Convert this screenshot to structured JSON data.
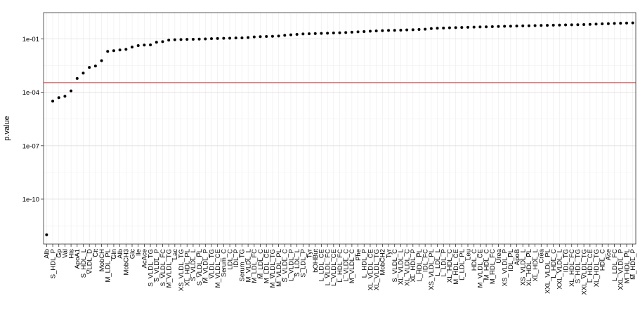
{
  "chart_data": {
    "type": "scatter",
    "ylabel": "p.value",
    "xlabel": "",
    "yscale": "log10",
    "ylim": [
      3e-13,
      3.0
    ],
    "yticks": [
      {
        "value": 0.1,
        "label": "1e-01"
      },
      {
        "value": 0.0001,
        "label": "1e-04"
      },
      {
        "value": 1e-07,
        "label": "1e-07"
      },
      {
        "value": 1e-10,
        "label": "1e-10"
      }
    ],
    "reference_line": {
      "value": 0.00035,
      "color": "#cc3333"
    },
    "grid": true,
    "point_color": "#000000",
    "points": [
      {
        "x": "Alb",
        "y": 1e-12
      },
      {
        "x": "S_HDL_P",
        "y": 3.2e-05
      },
      {
        "x": "Gp",
        "y": 5e-05
      },
      {
        "x": "Val",
        "y": 6e-05
      },
      {
        "x": "His",
        "y": 0.00012
      },
      {
        "x": "ApoA1",
        "y": 0.0006
      },
      {
        "x": "S_HDL_L",
        "y": 0.0012
      },
      {
        "x": "VLDL_D",
        "y": 0.0025
      },
      {
        "x": "Cit",
        "y": 0.003
      },
      {
        "x": "MobCH",
        "y": 0.006
      },
      {
        "x": "M_LDL_PL",
        "y": 0.02
      },
      {
        "x": "Gln",
        "y": 0.022
      },
      {
        "x": "Alb",
        "y": 0.024
      },
      {
        "x": "MobCH3",
        "y": 0.026
      },
      {
        "x": "Glc",
        "y": 0.035
      },
      {
        "x": "Ile",
        "y": 0.042
      },
      {
        "x": "AcAce",
        "y": 0.045
      },
      {
        "x": "S_VLDL_TG",
        "y": 0.046
      },
      {
        "x": "S_VLDL_P",
        "y": 0.065
      },
      {
        "x": "S_VLDL_FC",
        "y": 0.07
      },
      {
        "x": "M_VLDL_TG",
        "y": 0.085
      },
      {
        "x": "Lac",
        "y": 0.09
      },
      {
        "x": "XS_VLDL_TG",
        "y": 0.092
      },
      {
        "x": "XL_HDL_PL",
        "y": 0.094
      },
      {
        "x": "S_VLDL_L",
        "y": 0.096
      },
      {
        "x": "S_VLDL_PL",
        "y": 0.098
      },
      {
        "x": "M_VLDL_P",
        "y": 0.1
      },
      {
        "x": "VLDL_TG",
        "y": 0.103
      },
      {
        "x": "M_VLDL_CE",
        "y": 0.106
      },
      {
        "x": "Serum_C",
        "y": 0.108
      },
      {
        "x": "LDL_C",
        "y": 0.11
      },
      {
        "x": "IDL_P",
        "y": 0.113
      },
      {
        "x": "Serum_TG",
        "y": 0.115
      },
      {
        "x": "M_VLDL_L",
        "y": 0.12
      },
      {
        "x": "M_LDL_FC",
        "y": 0.13
      },
      {
        "x": "M_LDL_C",
        "y": 0.135
      },
      {
        "x": "M_LDL_CE",
        "y": 0.138
      },
      {
        "x": "M_VLDL_TG",
        "y": 0.14
      },
      {
        "x": "M_VLDL_PL",
        "y": 0.145
      },
      {
        "x": "S_VLDL_C",
        "y": 0.16
      },
      {
        "x": "L_VLDL_P",
        "y": 0.17
      },
      {
        "x": "S_LDL_L",
        "y": 0.18
      },
      {
        "x": "S_LDL_P",
        "y": 0.19
      },
      {
        "x": "Tyr",
        "y": 0.195
      },
      {
        "x": "bOHBut",
        "y": 0.2
      },
      {
        "x": "L_LDL_CE",
        "y": 0.205
      },
      {
        "x": "L_VLDL_FC",
        "y": 0.21
      },
      {
        "x": "L_VLDL_CE",
        "y": 0.215
      },
      {
        "x": "L_HDL_FC",
        "y": 0.22
      },
      {
        "x": "L_VLDL_C",
        "y": 0.23
      },
      {
        "x": "M_VLDL_C",
        "y": 0.24
      },
      {
        "x": "Phe",
        "y": 0.25
      },
      {
        "x": "L_HDL_P",
        "y": 0.26
      },
      {
        "x": "XL_VLDL_CE",
        "y": 0.27
      },
      {
        "x": "XL_VLDL_TG",
        "y": 0.28
      },
      {
        "x": "MobCH2",
        "y": 0.29
      },
      {
        "x": "Tyr",
        "y": 0.3
      },
      {
        "x": "S_VLDL_C",
        "y": 0.305
      },
      {
        "x": "XL_VLDL_L",
        "y": 0.31
      },
      {
        "x": "XL_VLDL_C",
        "y": 0.32
      },
      {
        "x": "XL_HDL_P",
        "y": 0.33
      },
      {
        "x": "L_HDL_PL",
        "y": 0.34
      },
      {
        "x": "IDL_FC",
        "y": 0.35
      },
      {
        "x": "XS_VLDL_PL",
        "y": 0.38
      },
      {
        "x": "L_LDL_L",
        "y": 0.4
      },
      {
        "x": "L_LDL_P",
        "y": 0.41
      },
      {
        "x": "XL_HDL_C",
        "y": 0.42
      },
      {
        "x": "M_HDL_CE",
        "y": 0.43
      },
      {
        "x": "L_LDL_PL",
        "y": 0.44
      },
      {
        "x": "Leu",
        "y": 0.45
      },
      {
        "x": "HDL_C",
        "y": 0.46
      },
      {
        "x": "M_VLDL_CE",
        "y": 0.47
      },
      {
        "x": "M_HDL_C",
        "y": 0.48
      },
      {
        "x": "M_HDL_FC",
        "y": 0.49
      },
      {
        "x": "Urea",
        "y": 0.5
      },
      {
        "x": "XS_VLDL_P",
        "y": 0.51
      },
      {
        "x": "IDL_PL",
        "y": 0.52
      },
      {
        "x": "ApoB",
        "y": 0.53
      },
      {
        "x": "XS_VLDL_L",
        "y": 0.54
      },
      {
        "x": "XL_HDL_PL",
        "y": 0.55
      },
      {
        "x": "XL_HDL_L",
        "y": 0.56
      },
      {
        "x": "Crea",
        "y": 0.57
      },
      {
        "x": "XXL_VLDL_PL",
        "y": 0.58
      },
      {
        "x": "L_HDL_C",
        "y": 0.59
      },
      {
        "x": "XXL_VLDL_L",
        "y": 0.6
      },
      {
        "x": "IDL_TG",
        "y": 0.61
      },
      {
        "x": "XL_HDL_FC",
        "y": 0.62
      },
      {
        "x": "S_HDL_TG",
        "y": 0.63
      },
      {
        "x": "XXL_VLDL_TG",
        "y": 0.64
      },
      {
        "x": "L_HDL_CE",
        "y": 0.66
      },
      {
        "x": "XL_HDL_TG",
        "y": 0.68
      },
      {
        "x": "HDL_C",
        "y": 0.7
      },
      {
        "x": "Ace",
        "y": 0.72
      },
      {
        "x": "L_LDL_FC",
        "y": 0.74
      },
      {
        "x": "XXL_VLDL_P",
        "y": 0.76
      },
      {
        "x": "M_HDL_PL",
        "y": 0.78
      },
      {
        "x": "M_HDL_P",
        "y": 0.8
      }
    ]
  }
}
